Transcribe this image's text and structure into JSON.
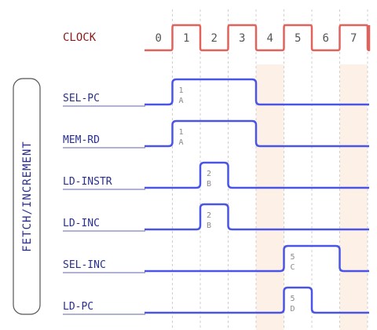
{
  "clock": {
    "label": "CLOCK",
    "ticks": [
      "0",
      "1",
      "2",
      "3",
      "4",
      "5",
      "6",
      "7"
    ],
    "color": "#e0625a"
  },
  "group": {
    "label": "FETCH/INCREMENT"
  },
  "colors": {
    "signal": "#4a55e6",
    "highlight": "#fdf0e6",
    "grid": "#cfcfcf",
    "signal_label": "#2a2f8f"
  },
  "signals": [
    {
      "name": "SEL-PC",
      "high": [
        1,
        4
      ],
      "ann": [
        "1",
        "A"
      ]
    },
    {
      "name": "MEM-RD",
      "high": [
        1,
        4
      ],
      "ann": [
        "1",
        "A"
      ]
    },
    {
      "name": "LD-INSTR",
      "high": [
        2,
        3
      ],
      "ann": [
        "2",
        "B"
      ]
    },
    {
      "name": "LD-INC",
      "high": [
        2,
        3
      ],
      "ann": [
        "2",
        "B"
      ]
    },
    {
      "name": "SEL-INC",
      "high": [
        5,
        7
      ],
      "ann": [
        "5",
        "C"
      ]
    },
    {
      "name": "LD-PC",
      "high": [
        5,
        6
      ],
      "ann": [
        "5",
        "D"
      ]
    }
  ],
  "highlighted_cycles": [
    4,
    7
  ]
}
